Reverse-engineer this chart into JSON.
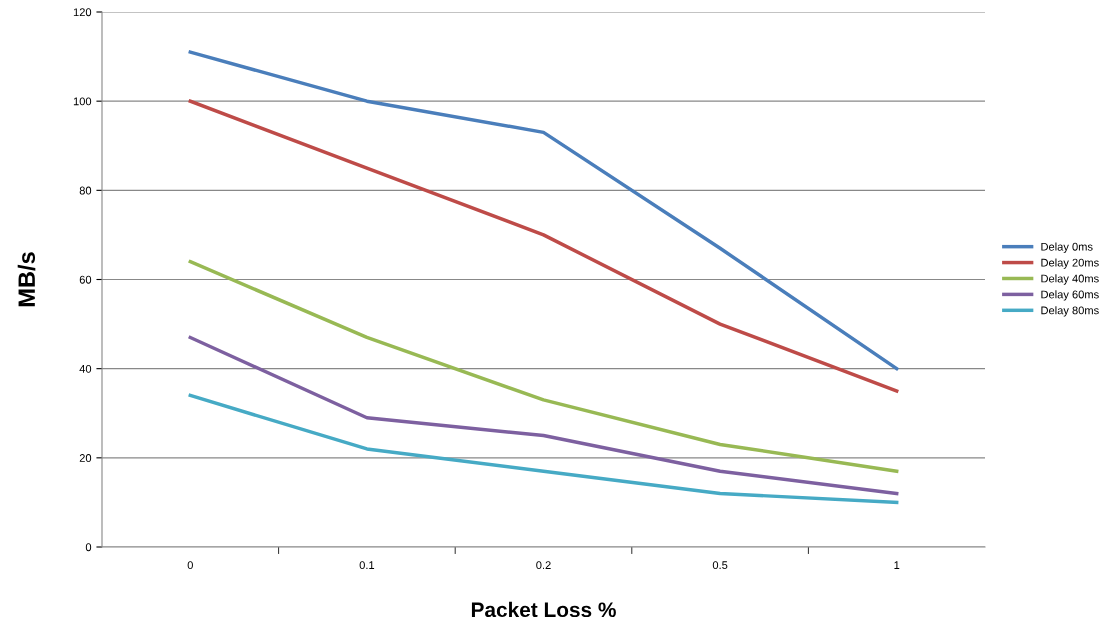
{
  "chart_data": {
    "type": "line",
    "xlabel": "Packet Loss %",
    "ylabel": "MB/s",
    "categories": [
      "0",
      "0.1",
      "0.2",
      "0.5",
      "1"
    ],
    "series": [
      {
        "name": "Delay 0ms",
        "color": "#4a7ebb",
        "values": [
          111,
          100,
          93,
          67,
          40
        ]
      },
      {
        "name": "Delay 20ms",
        "color": "#be4b48",
        "values": [
          100,
          85,
          70,
          50,
          35
        ]
      },
      {
        "name": "Delay 40ms",
        "color": "#98b954",
        "values": [
          64,
          47,
          33,
          23,
          17
        ]
      },
      {
        "name": "Delay 60ms",
        "color": "#7d60a0",
        "values": [
          47,
          29,
          25,
          17,
          12
        ]
      },
      {
        "name": "Delay 80ms",
        "color": "#46aac5",
        "values": [
          34,
          22,
          17,
          12,
          10
        ]
      }
    ],
    "ylim": [
      0,
      120
    ],
    "yticks": [
      0,
      20,
      40,
      60,
      80,
      100,
      120
    ],
    "grid": "y",
    "legend": "right",
    "marker": "none",
    "line_style": "solid"
  }
}
